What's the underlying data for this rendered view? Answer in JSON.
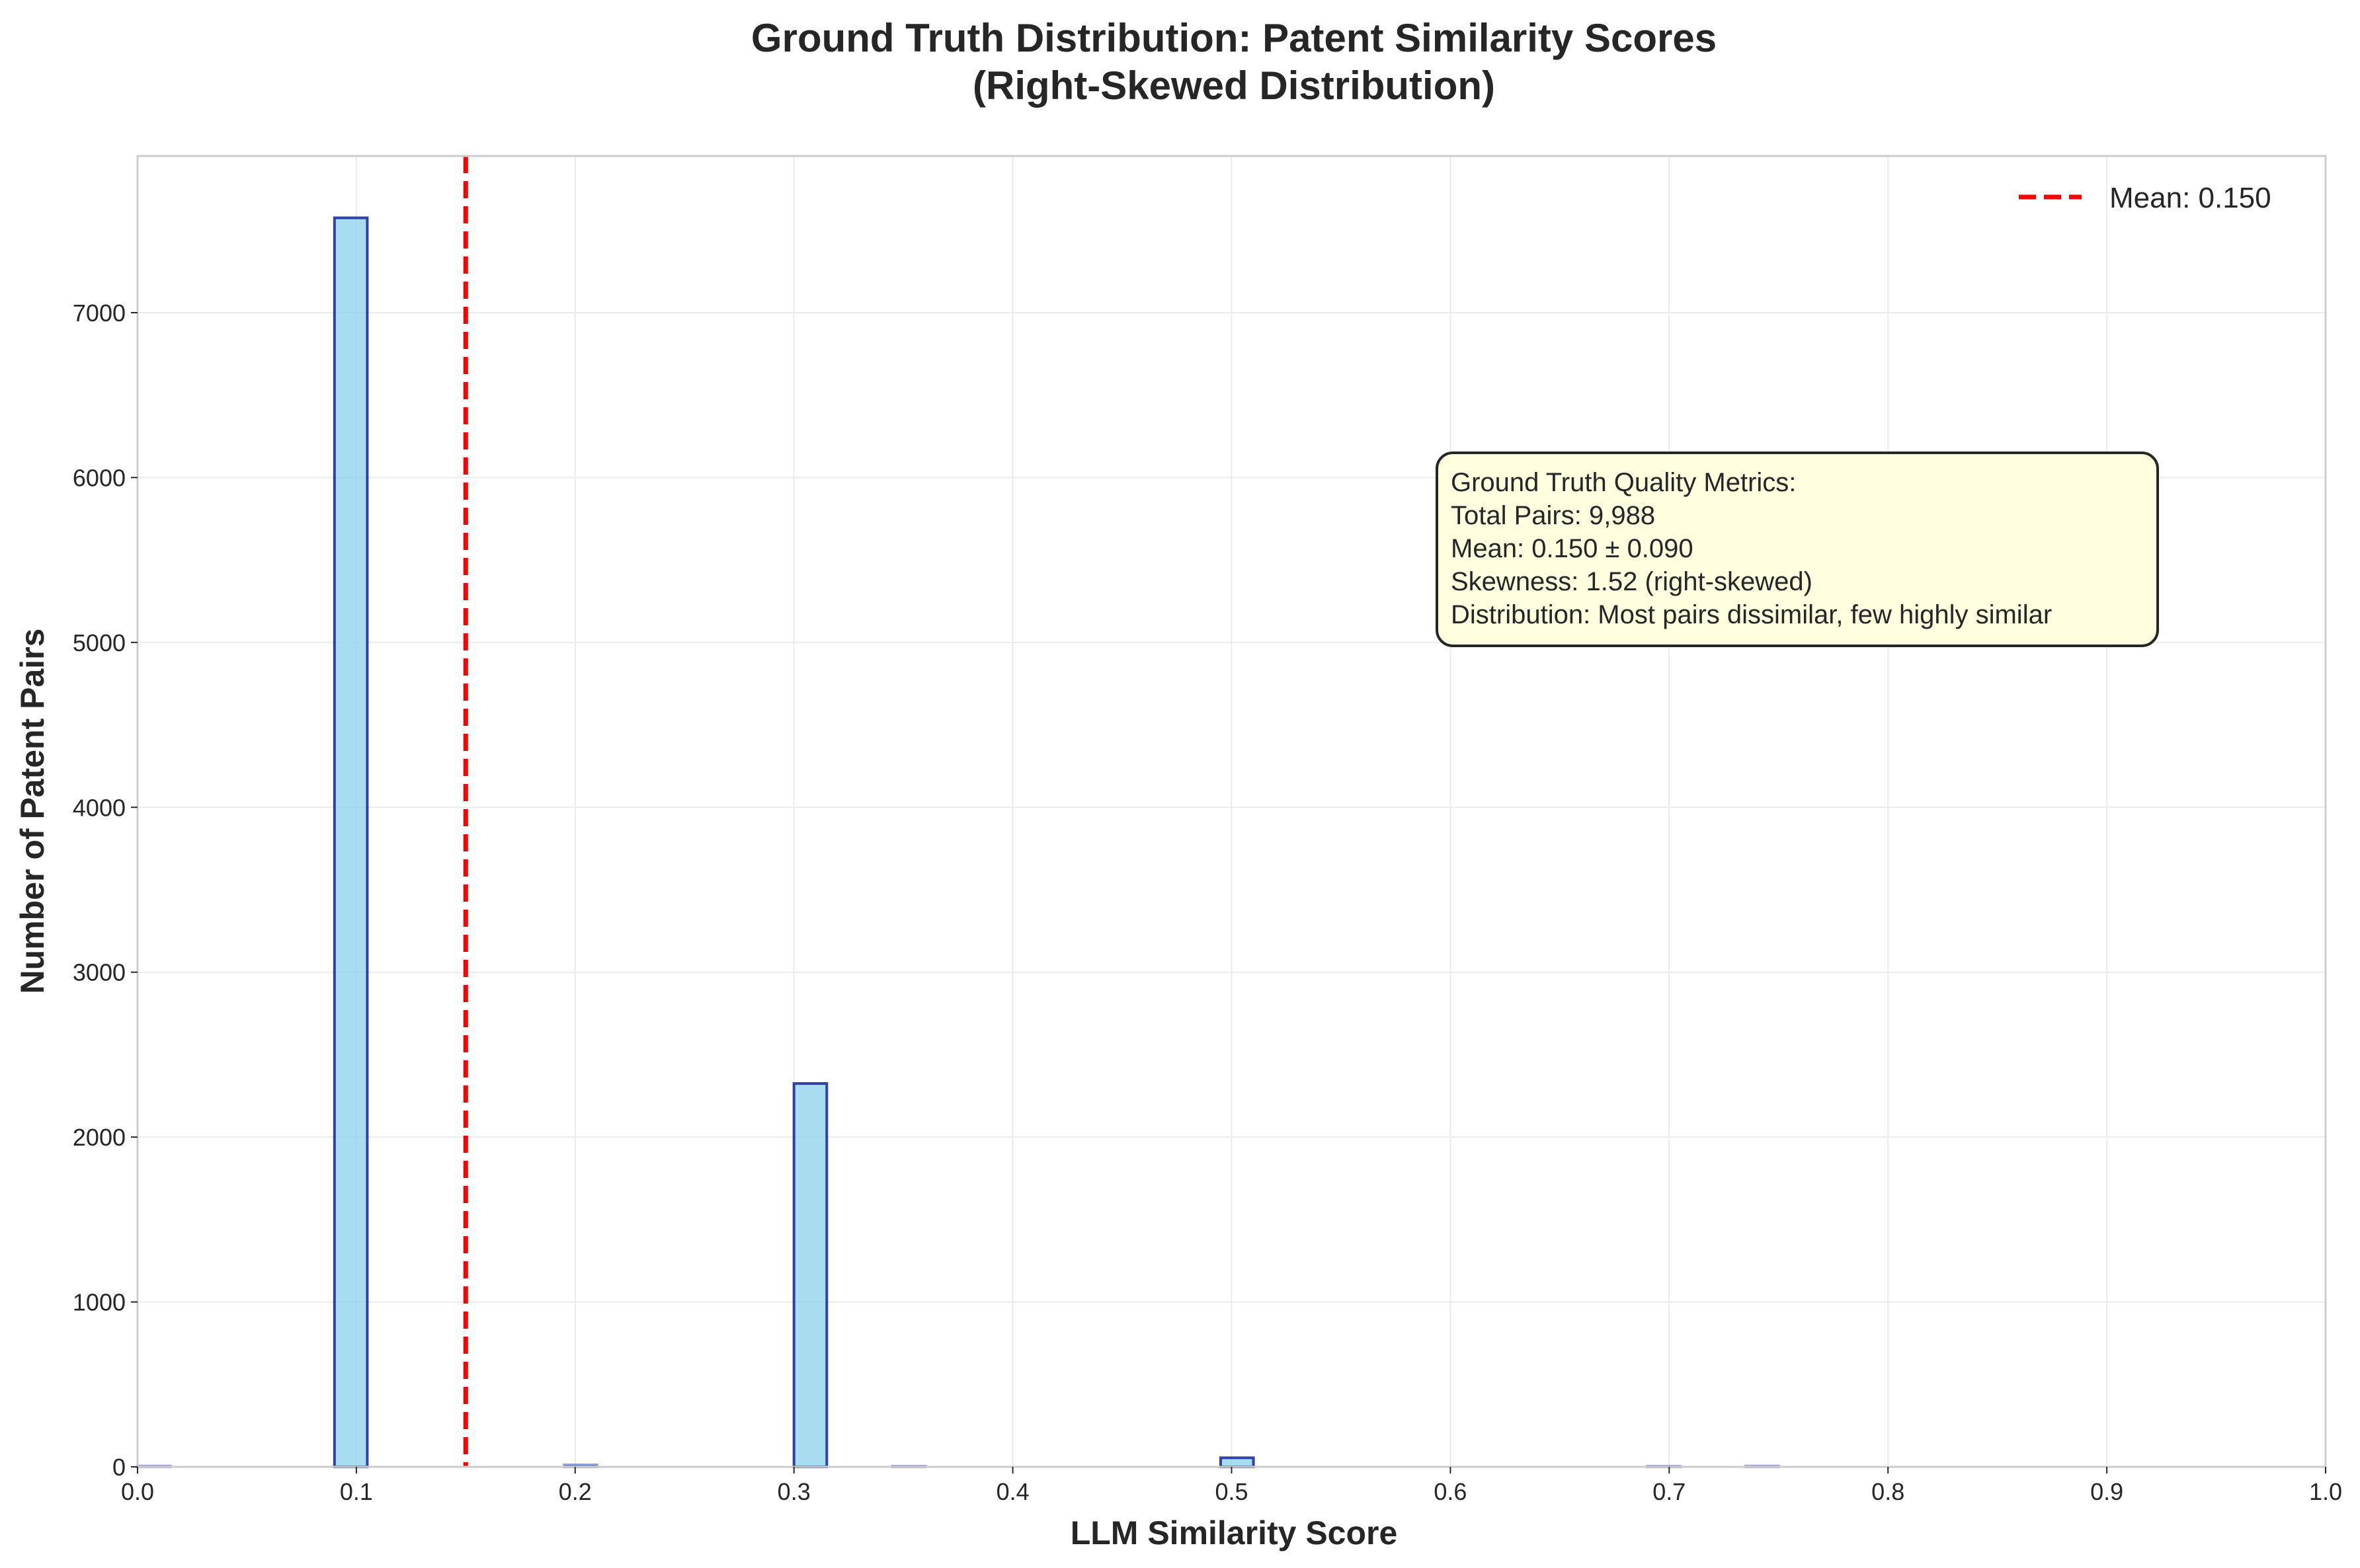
{
  "chart_data": {
    "type": "bar",
    "title_line1": "Ground Truth Distribution: Patent Similarity Scores",
    "title_line2": "(Right-Skewed Distribution)",
    "xlabel": "LLM Similarity Score",
    "ylabel": "Number of Patent Pairs",
    "xlim": [
      0.0,
      1.0
    ],
    "ylim": [
      0,
      7950
    ],
    "xticks": [
      0.0,
      0.1,
      0.2,
      0.3,
      0.4,
      0.5,
      0.6,
      0.7,
      0.8,
      0.9,
      1.0
    ],
    "xtick_labels": [
      "0.0",
      "0.1",
      "0.2",
      "0.3",
      "0.4",
      "0.5",
      "0.6",
      "0.7",
      "0.8",
      "0.9",
      "1.0"
    ],
    "yticks": [
      0,
      1000,
      2000,
      3000,
      4000,
      5000,
      6000,
      7000
    ],
    "ytick_labels": [
      "0",
      "1000",
      "2000",
      "3000",
      "4000",
      "5000",
      "6000",
      "7000"
    ],
    "grid": true,
    "bins": [
      {
        "x0": 0.0,
        "x1": 0.015,
        "count": 5
      },
      {
        "x0": 0.09,
        "x1": 0.105,
        "count": 7575
      },
      {
        "x0": 0.195,
        "x1": 0.21,
        "count": 12
      },
      {
        "x0": 0.3,
        "x1": 0.315,
        "count": 2325
      },
      {
        "x0": 0.345,
        "x1": 0.36,
        "count": 3
      },
      {
        "x0": 0.495,
        "x1": 0.51,
        "count": 55
      },
      {
        "x0": 0.69,
        "x1": 0.705,
        "count": 3
      },
      {
        "x0": 0.735,
        "x1": 0.75,
        "count": 5
      }
    ],
    "bar_fill": "#87ceeb",
    "bar_edge": "#1f2f99",
    "mean_line": {
      "x": 0.15,
      "color": "#ff0000",
      "label": "Mean: 0.150"
    },
    "legend_location": "upper right",
    "annotation_box": {
      "lines": [
        "Ground Truth Quality Metrics:",
        "Total Pairs: 9,988",
        "Mean: 0.150 ± 0.090",
        "Skewness: 1.52 (right-skewed)",
        "Distribution: Most pairs dissimilar, few highly similar"
      ],
      "fill": "#ffffe0",
      "edge": "#262626"
    }
  }
}
